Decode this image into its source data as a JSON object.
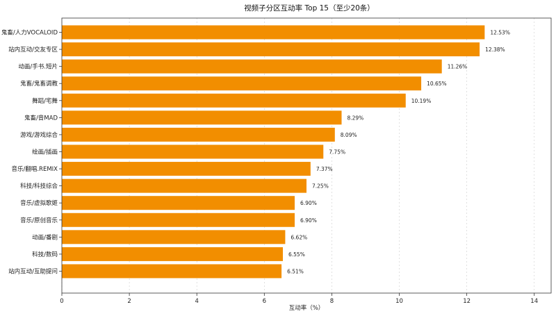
{
  "chart_data": {
    "type": "bar",
    "orientation": "horizontal",
    "title": "视频子分区互动率 Top 15（至少20条）",
    "xlabel": "互动率（%）",
    "ylabel": "",
    "xlim": [
      0,
      14.5
    ],
    "xticks": [
      0,
      2,
      4,
      6,
      8,
      10,
      12,
      14
    ],
    "grid": "x-dashed",
    "bar_color": "#f28e00",
    "categories": [
      "鬼畜/人力VOCALOID",
      "站内互动/交友专区",
      "动画/手书.短片",
      "鬼畜/鬼畜调教",
      "舞蹈/宅舞",
      "鬼畜/音MAD",
      "游戏/游戏综合",
      "绘画/插画",
      "音乐/翻唱.REMIX",
      "科技/科技综合",
      "音乐/虚拟歌姬",
      "音乐/原创音乐",
      "动画/番剧",
      "科技/数码",
      "站内互动/互助提问"
    ],
    "values": [
      12.53,
      12.38,
      11.26,
      10.65,
      10.19,
      8.29,
      8.09,
      7.75,
      7.37,
      7.25,
      6.9,
      6.9,
      6.62,
      6.55,
      6.51
    ],
    "value_labels": [
      "12.53%",
      "12.38%",
      "11.26%",
      "10.65%",
      "10.19%",
      "8.29%",
      "8.09%",
      "7.75%",
      "7.37%",
      "7.25%",
      "6.90%",
      "6.90%",
      "6.62%",
      "6.55%",
      "6.51%"
    ]
  }
}
